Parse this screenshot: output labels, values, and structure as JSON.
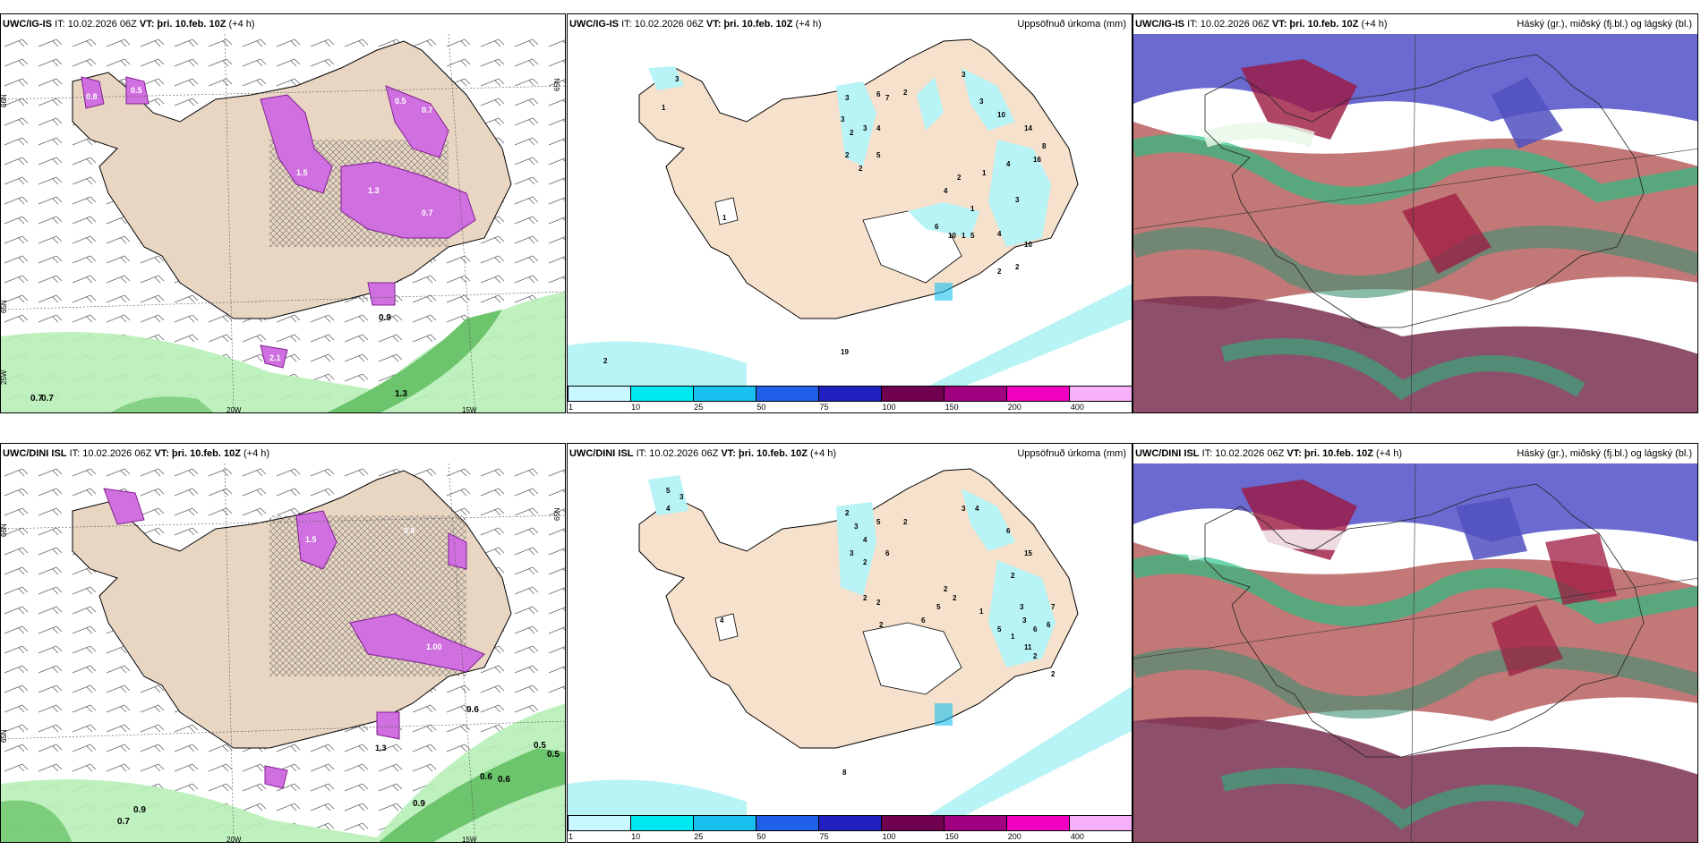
{
  "rows": [
    {
      "model": "UWC/IG-IS",
      "it": "IT: 10.02.2026 06Z",
      "vt": "VT: þri. 10.feb. 10Z",
      "lead": "(+4 h)",
      "wind_lat_labels": [
        "66N",
        "65N",
        "65N"
      ],
      "wind_lon_labels": [
        "20W",
        "15W",
        "25W"
      ],
      "wind_values": [
        "0.7",
        "0.7",
        "1.3",
        "0.9",
        "2.1",
        "1.5",
        "0.5",
        "0.7",
        "0.8",
        "1.3",
        "0.5",
        "0.7"
      ],
      "precip_values": [
        "3",
        "1",
        "3",
        "6",
        "7",
        "2",
        "3",
        "2",
        "3",
        "4",
        "3",
        "10",
        "14",
        "3",
        "2",
        "2",
        "5",
        "8",
        "4",
        "2",
        "4",
        "3",
        "1",
        "1",
        "1",
        "6",
        "10",
        "5",
        "4",
        "10",
        "16",
        "1",
        "2",
        "2",
        "19",
        "2"
      ]
    },
    {
      "model": "UWC/DINI ISL",
      "it": "IT: 10.02.2026 06Z",
      "vt": "VT: þri. 10.feb. 10Z",
      "lead": "(+4 h)",
      "wind_lat_labels": [
        "66N",
        "65N",
        "65N"
      ],
      "wind_lon_labels": [
        "20W",
        "15W"
      ],
      "wind_values": [
        "0.6",
        "0.5",
        "0.5",
        "0.6",
        "0.6",
        "0.9",
        "0.7",
        "0.9",
        "1.3",
        "1.5",
        "0.8",
        "1.00"
      ],
      "precip_values": [
        "5",
        "3",
        "4",
        "2",
        "3",
        "4",
        "3",
        "2",
        "5",
        "6",
        "2",
        "3",
        "4",
        "6",
        "15",
        "2",
        "2",
        "2",
        "2",
        "2",
        "5",
        "1",
        "3",
        "3",
        "7",
        "6",
        "5",
        "6",
        "1",
        "11",
        "2",
        "2",
        "4",
        "8",
        "6",
        "2"
      ]
    }
  ],
  "precip_title": "Uppsöfnuð úrkoma (mm)",
  "cloud_title": "Háský (gr.), miðský (fj.bl.) og lágský (bl.)",
  "legend": {
    "ticks": [
      "1",
      "10",
      "25",
      "50",
      "75",
      "100",
      "150",
      "200",
      "400"
    ],
    "colors": [
      "#c8f7ff",
      "#00e8f0",
      "#18c0f0",
      "#2060e8",
      "#2020c0",
      "#700050",
      "#a00080",
      "#f000c0",
      "#f8b0f8"
    ]
  },
  "colors": {
    "land": "#f5e1cc",
    "sea": "#ffffff",
    "precip_light": "#b8f3f6",
    "shower": "#d070e0",
    "wind_green": "#b8f0b8"
  }
}
